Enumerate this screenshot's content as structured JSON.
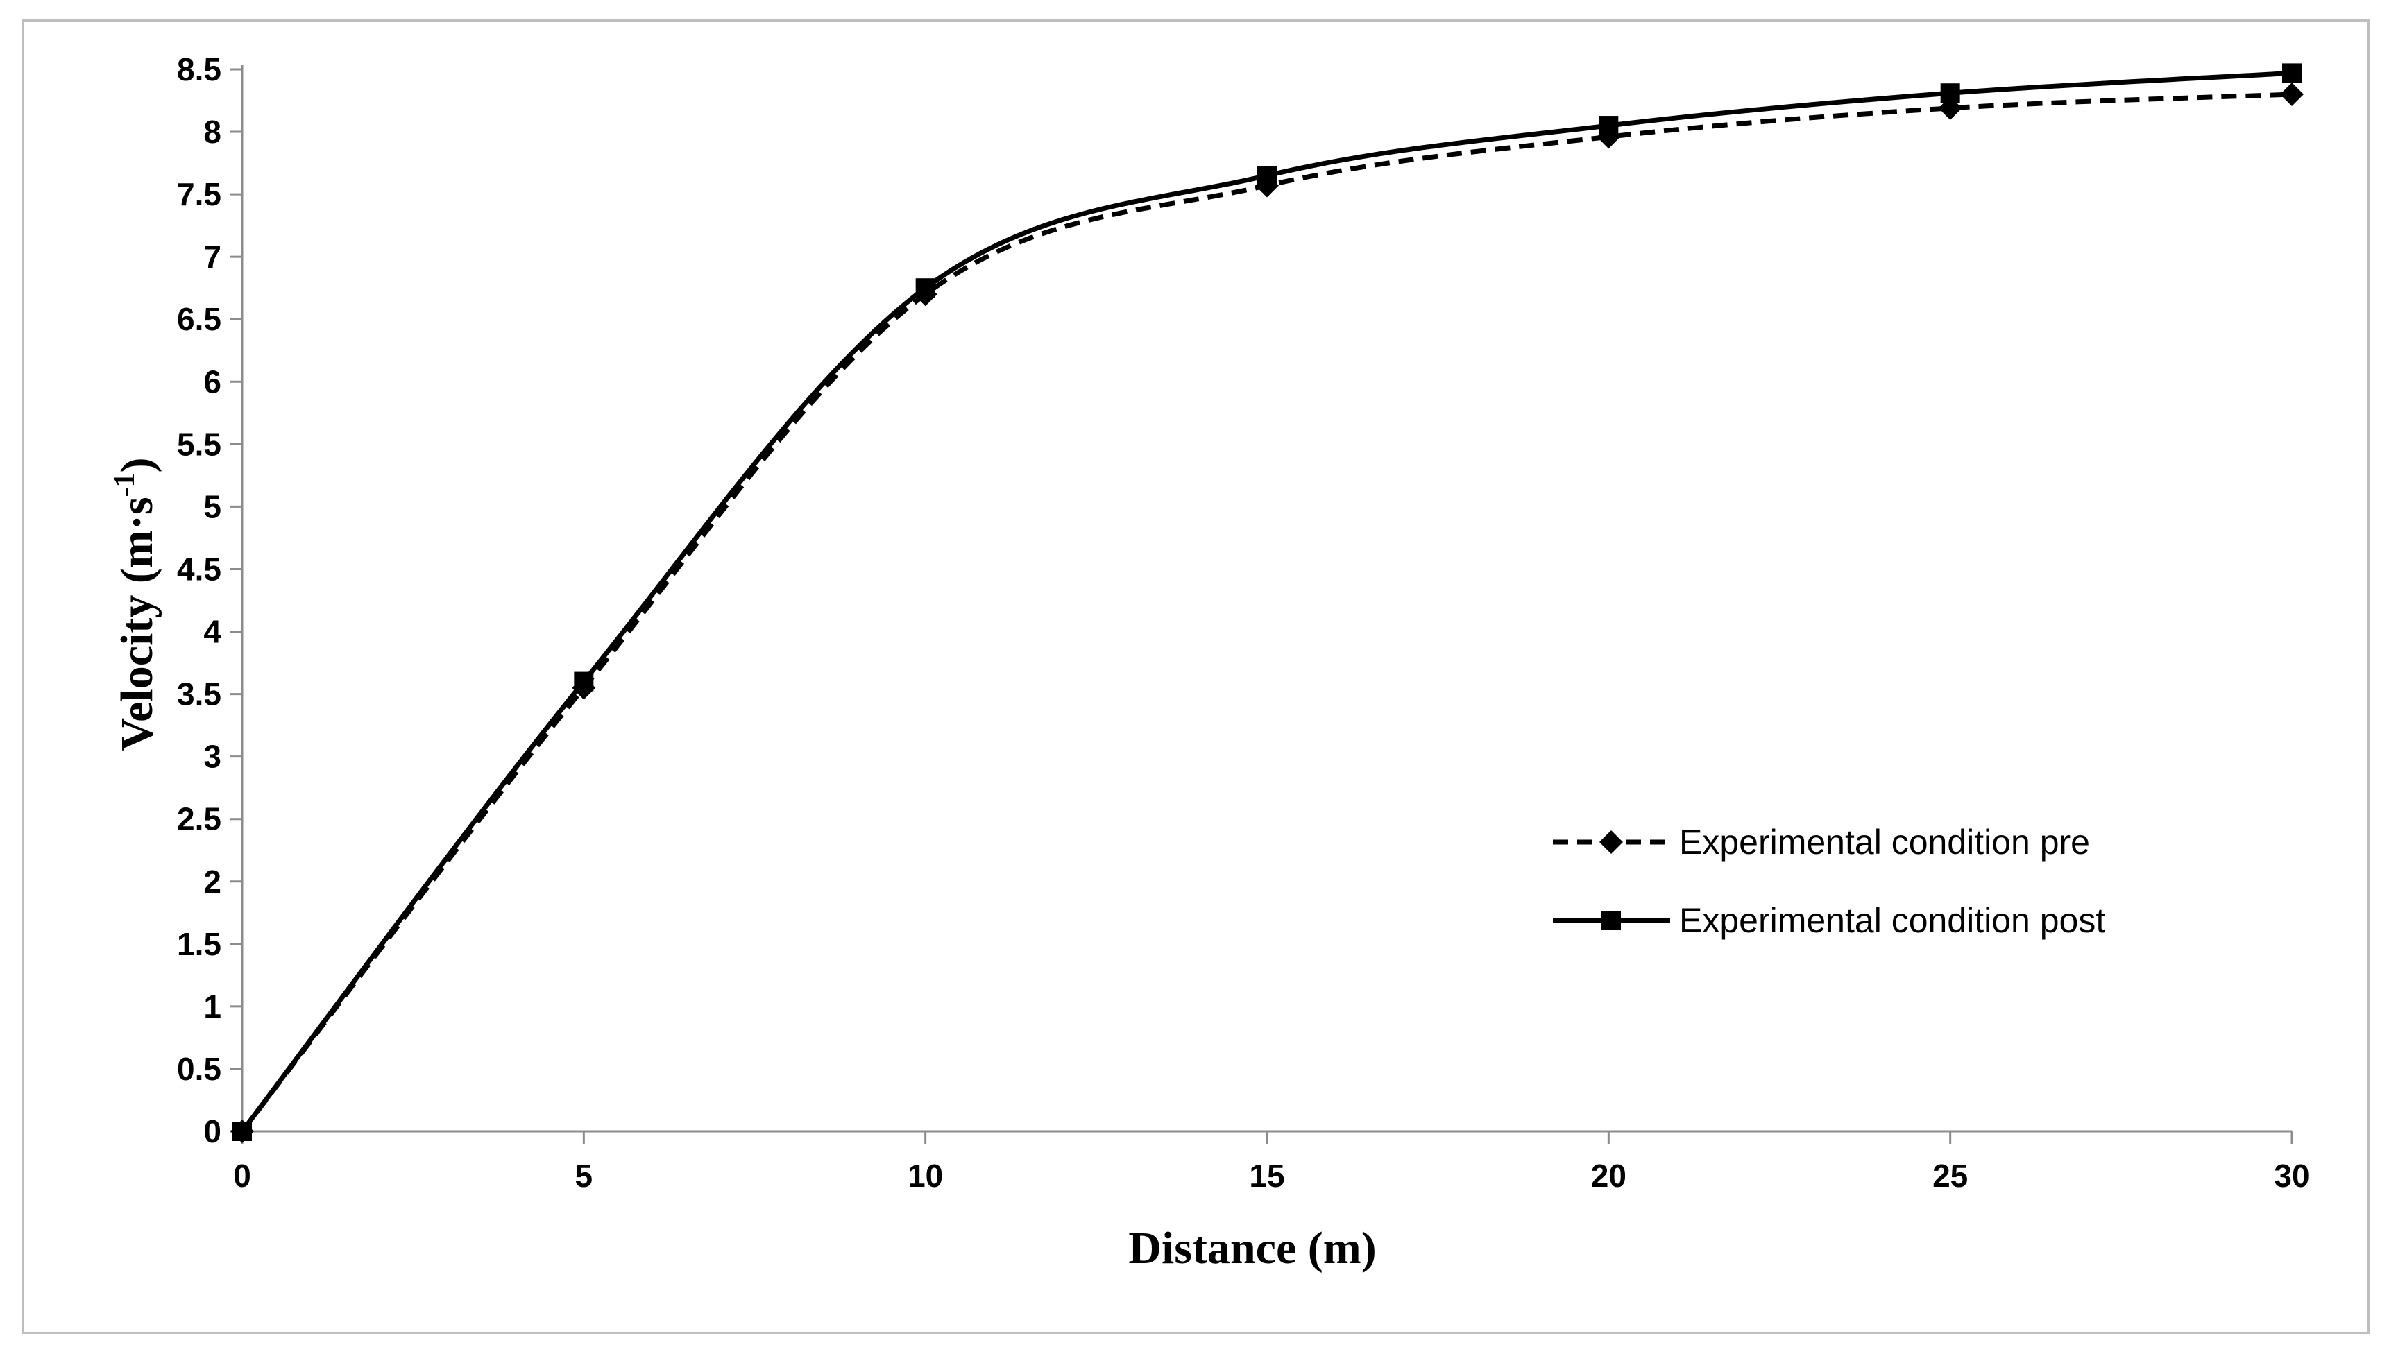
{
  "chart_data": {
    "type": "line",
    "title": "",
    "xlabel": "Distance (m)",
    "ylabel_main": "Velocity (m·s",
    "ylabel_sup": "-1",
    "ylabel_close": ")",
    "xlim": [
      0,
      30
    ],
    "ylim": [
      0,
      8.5
    ],
    "x_ticks": [
      "0",
      "5",
      "10",
      "15",
      "20",
      "25",
      "30"
    ],
    "y_ticks": [
      "0",
      "0.5",
      "1",
      "1.5",
      "2",
      "2.5",
      "3",
      "3.5",
      "4",
      "4.5",
      "5",
      "5.5",
      "6",
      "6.5",
      "7",
      "7.5",
      "8",
      "8.5"
    ],
    "grid": false,
    "legend_position": "bottom-right",
    "x": [
      0,
      5,
      10,
      15,
      20,
      25,
      30
    ],
    "series": [
      {
        "name": "Experimental condition pre",
        "values": [
          0,
          3.55,
          6.7,
          7.57,
          7.96,
          8.19,
          8.3
        ],
        "line_style": "dashed",
        "marker": "diamond",
        "color": "#000000"
      },
      {
        "name": "Experimental condition post",
        "values": [
          0,
          3.6,
          6.75,
          7.65,
          8.05,
          8.31,
          8.47
        ],
        "line_style": "solid",
        "marker": "square",
        "color": "#000000"
      }
    ]
  }
}
